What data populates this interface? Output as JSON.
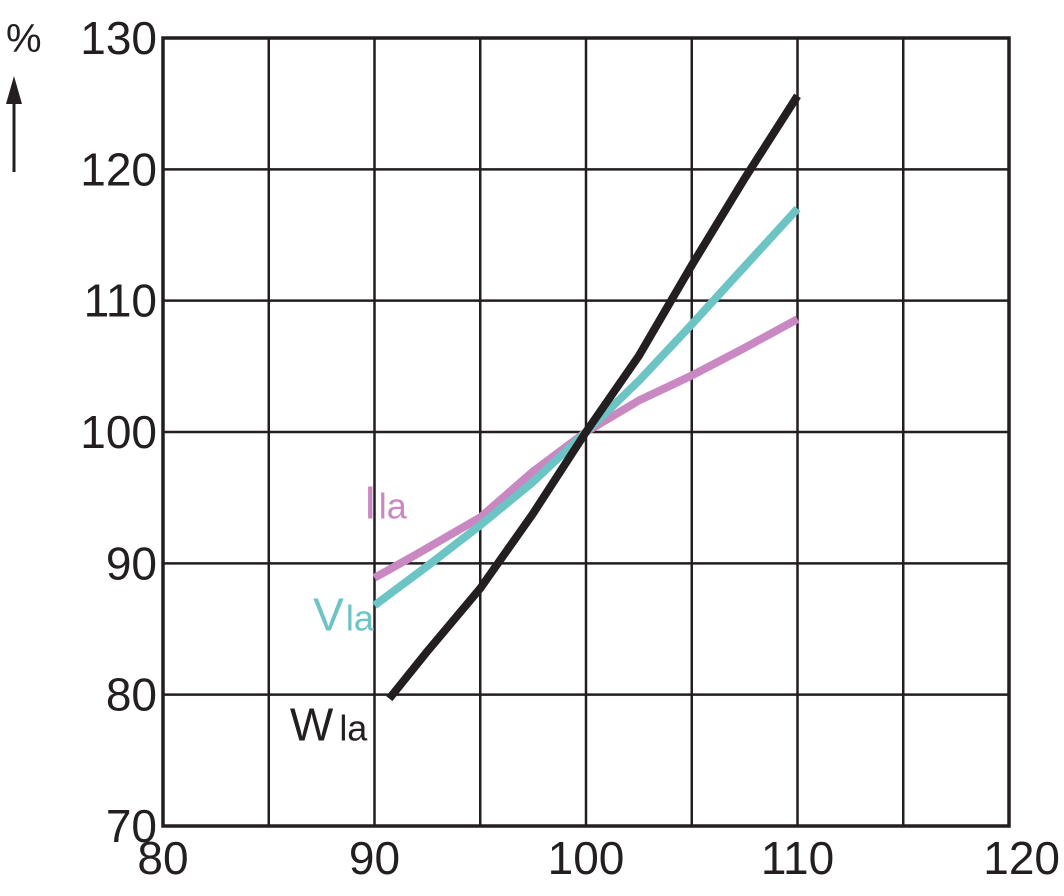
{
  "chart_data": {
    "type": "line",
    "title": "",
    "xlabel": "",
    "ylabel": "%",
    "xlim": [
      80,
      120
    ],
    "ylim": [
      70,
      130
    ],
    "x_ticks": [
      80,
      85,
      90,
      95,
      100,
      105,
      110,
      115,
      120
    ],
    "y_ticks": [
      70,
      80,
      90,
      100,
      110,
      120,
      130
    ],
    "x_tick_labels": [
      "80",
      "90",
      "100",
      "110",
      "120"
    ],
    "y_tick_labels": [
      "70",
      "80",
      "90",
      "100",
      "110",
      "120",
      "130"
    ],
    "grid": true,
    "series": [
      {
        "name": "Ila",
        "name_main": "I",
        "name_sub": "la",
        "color": "#c988c1",
        "x": [
          90,
          92,
          95,
          97.5,
          100,
          102.5,
          105,
          107.5,
          110
        ],
        "y": [
          88.9,
          90.7,
          93.5,
          97.0,
          100.0,
          102.4,
          104.3,
          106.4,
          108.6
        ]
      },
      {
        "name": "Vla",
        "name_main": "V",
        "name_sub": "la",
        "color": "#6cc4c4",
        "x": [
          90,
          92.5,
          95,
          97.5,
          100,
          102.5,
          105,
          107.5,
          110
        ],
        "y": [
          86.8,
          89.8,
          92.9,
          96.2,
          100.0,
          103.9,
          108.2,
          112.6,
          117.0
        ]
      },
      {
        "name": "Wla",
        "name_main": "W",
        "name_sub": "la",
        "color": "#231f20",
        "x": [
          90.7,
          92.5,
          95,
          97.5,
          100,
          102.5,
          105,
          107.5,
          110
        ],
        "y": [
          79.7,
          83.3,
          88.1,
          93.8,
          100.0,
          105.8,
          112.7,
          119.3,
          125.6
        ]
      }
    ],
    "annotations": [
      {
        "series": "Ila",
        "x": 89.5,
        "y": 93.4,
        "align": "start"
      },
      {
        "series": "Vla",
        "x": 87.1,
        "y": 84.9,
        "align": "start"
      },
      {
        "series": "Wla",
        "x": 86.0,
        "y": 76.5,
        "align": "start"
      }
    ]
  }
}
